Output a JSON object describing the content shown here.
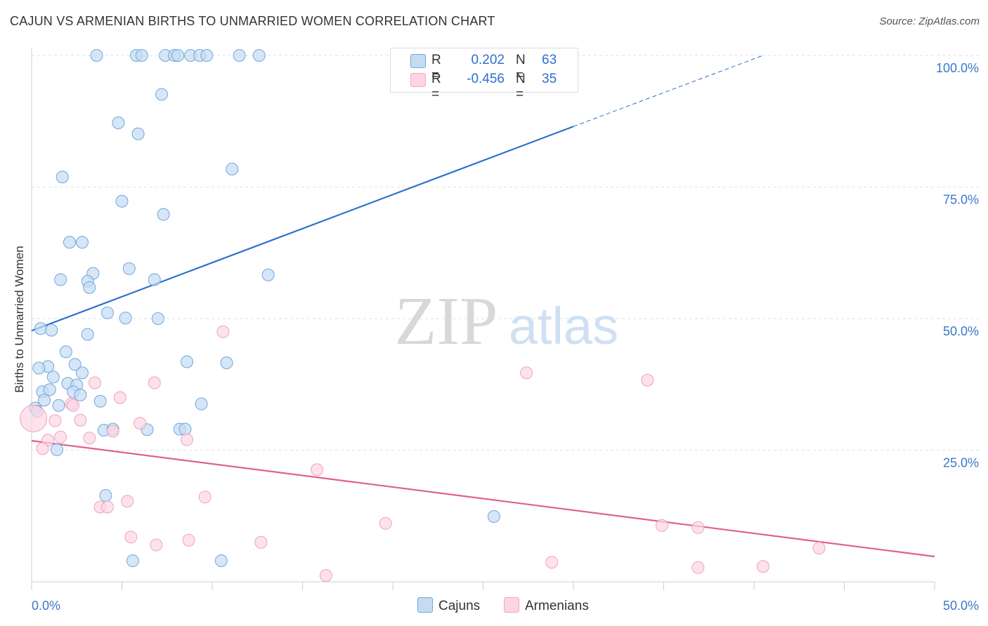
{
  "title": "CAJUN VS ARMENIAN BIRTHS TO UNMARRIED WOMEN CORRELATION CHART",
  "source": "Source: ZipAtlas.com",
  "watermark": {
    "zip": "ZIP",
    "atlas": "atlas"
  },
  "legend": {
    "r_label": "R =",
    "n_label": "N =",
    "rows": [
      {
        "name": "Cajuns",
        "r": "0.202",
        "n": "63",
        "color": "#6fa8dc"
      },
      {
        "name": "Armenians",
        "r": "-0.456",
        "n": "35",
        "color": "#f4a7c0"
      }
    ]
  },
  "chart_data": {
    "type": "scatter",
    "title": "CAJUN VS ARMENIAN BIRTHS TO UNMARRIED WOMEN CORRELATION CHART",
    "xlabel": "",
    "ylabel": "Births to Unmarried Women",
    "xlim": [
      0,
      50
    ],
    "ylim": [
      0,
      100
    ],
    "x_tick_labels": [
      "0.0%",
      "50.0%"
    ],
    "y_tick_labels": [
      "100.0%",
      "75.0%",
      "50.0%",
      "25.0%"
    ],
    "y_tick_values": [
      100,
      75,
      50,
      25
    ],
    "grid": true,
    "colors": {
      "Cajuns": "#2d6fd0",
      "Armenians": "#e0608f"
    },
    "series": [
      {
        "name": "Cajuns",
        "points": [
          [
            3.6,
            100
          ],
          [
            5.8,
            100
          ],
          [
            6.1,
            100
          ],
          [
            7.4,
            100
          ],
          [
            7.9,
            100
          ],
          [
            8.1,
            100
          ],
          [
            8.8,
            100
          ],
          [
            9.3,
            100
          ],
          [
            9.7,
            100
          ],
          [
            11.5,
            100
          ],
          [
            12.6,
            100
          ],
          [
            7.2,
            92.6
          ],
          [
            4.8,
            87.2
          ],
          [
            5.9,
            85.1
          ],
          [
            11.1,
            78.4
          ],
          [
            1.7,
            76.9
          ],
          [
            5.0,
            72.3
          ],
          [
            7.3,
            69.8
          ],
          [
            2.1,
            64.5
          ],
          [
            2.8,
            64.5
          ],
          [
            5.4,
            59.5
          ],
          [
            3.4,
            58.6
          ],
          [
            13.1,
            58.3
          ],
          [
            1.6,
            57.4
          ],
          [
            3.1,
            57.1
          ],
          [
            6.8,
            57.4
          ],
          [
            3.2,
            55.9
          ],
          [
            4.2,
            51.1
          ],
          [
            5.2,
            50.1
          ],
          [
            7.0,
            50.0
          ],
          [
            0.5,
            48.1
          ],
          [
            1.1,
            47.8
          ],
          [
            3.1,
            47.0
          ],
          [
            1.9,
            43.7
          ],
          [
            8.6,
            41.8
          ],
          [
            10.8,
            41.6
          ],
          [
            0.9,
            40.9
          ],
          [
            0.4,
            40.6
          ],
          [
            2.4,
            41.3
          ],
          [
            2.8,
            39.7
          ],
          [
            1.2,
            38.9
          ],
          [
            2.0,
            37.7
          ],
          [
            2.5,
            37.4
          ],
          [
            0.6,
            36.1
          ],
          [
            1.0,
            36.5
          ],
          [
            2.3,
            36.1
          ],
          [
            2.7,
            35.5
          ],
          [
            0.7,
            34.5
          ],
          [
            3.8,
            34.3
          ],
          [
            9.4,
            33.8
          ],
          [
            1.5,
            33.5
          ],
          [
            0.2,
            33.0
          ],
          [
            0.3,
            32.4
          ],
          [
            4.0,
            28.8
          ],
          [
            4.5,
            29.0
          ],
          [
            6.4,
            28.9
          ],
          [
            8.2,
            29.0
          ],
          [
            8.5,
            29.0
          ],
          [
            1.4,
            25.1
          ],
          [
            4.1,
            16.4
          ],
          [
            25.6,
            12.4
          ],
          [
            5.6,
            4.0
          ],
          [
            10.5,
            4.0
          ]
        ]
      },
      {
        "name": "Armenians",
        "points": [
          [
            0.1,
            31.0
          ],
          [
            10.6,
            47.5
          ],
          [
            27.4,
            39.7
          ],
          [
            34.1,
            38.3
          ],
          [
            3.5,
            37.8
          ],
          [
            6.8,
            37.8
          ],
          [
            4.9,
            35.0
          ],
          [
            2.2,
            33.8
          ],
          [
            2.3,
            33.5
          ],
          [
            6.0,
            30.1
          ],
          [
            1.3,
            30.6
          ],
          [
            2.7,
            30.7
          ],
          [
            4.5,
            28.6
          ],
          [
            1.6,
            27.5
          ],
          [
            3.2,
            27.3
          ],
          [
            8.6,
            27.0
          ],
          [
            0.9,
            26.9
          ],
          [
            0.6,
            25.3
          ],
          [
            15.8,
            21.3
          ],
          [
            9.6,
            16.1
          ],
          [
            5.3,
            15.3
          ],
          [
            3.8,
            14.2
          ],
          [
            4.2,
            14.2
          ],
          [
            19.6,
            11.1
          ],
          [
            34.9,
            10.7
          ],
          [
            36.9,
            10.3
          ],
          [
            5.5,
            8.5
          ],
          [
            8.7,
            7.9
          ],
          [
            12.7,
            7.5
          ],
          [
            6.9,
            7.0
          ],
          [
            43.6,
            6.4
          ],
          [
            28.8,
            3.7
          ],
          [
            36.9,
            2.7
          ],
          [
            40.5,
            2.9
          ],
          [
            16.3,
            1.2
          ]
        ]
      }
    ],
    "trendlines": [
      {
        "series": "Cajuns",
        "x0": 0,
        "y0": 47.7,
        "x1": 30,
        "y1": 86.5,
        "dashed_to_x": 40.5,
        "dashed_to_y": 100
      },
      {
        "series": "Armenians",
        "x0": 0,
        "y0": 26.8,
        "x1": 50,
        "y1": 4.8
      }
    ]
  }
}
